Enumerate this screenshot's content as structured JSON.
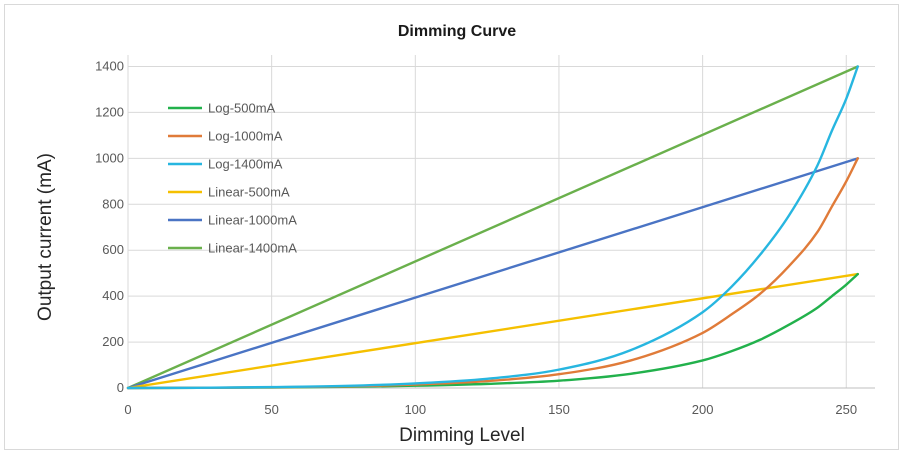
{
  "chart_data": {
    "type": "line",
    "title": "Dimming Curve",
    "xlabel": "Dimming Level",
    "ylabel": "Output current (mA)",
    "xlim": [
      0,
      260
    ],
    "ylim": [
      0,
      1450
    ],
    "xticks": [
      0,
      50,
      100,
      150,
      200,
      250
    ],
    "yticks": [
      0,
      200,
      400,
      600,
      800,
      1000,
      1200,
      1400
    ],
    "grid": true,
    "legend_position": "top-left",
    "series": [
      {
        "name": "Log-500mA",
        "color": "#22b14c",
        "x": [
          0,
          25,
          50,
          75,
          100,
          125,
          150,
          175,
          200,
          210,
          220,
          230,
          240,
          245,
          250,
          254
        ],
        "y": [
          0,
          1,
          2,
          5,
          10,
          18,
          32,
          62,
          120,
          160,
          210,
          275,
          350,
          400,
          450,
          496
        ]
      },
      {
        "name": "Log-1000mA",
        "color": "#e07b39",
        "x": [
          0,
          25,
          50,
          75,
          100,
          125,
          150,
          175,
          200,
          210,
          220,
          230,
          240,
          245,
          250,
          254
        ],
        "y": [
          0,
          1,
          3,
          7,
          15,
          30,
          60,
          120,
          240,
          320,
          410,
          530,
          680,
          790,
          900,
          1000
        ]
      },
      {
        "name": "Log-1400mA",
        "color": "#27b6e0",
        "x": [
          0,
          25,
          50,
          75,
          100,
          125,
          150,
          175,
          200,
          210,
          220,
          230,
          240,
          245,
          250,
          254
        ],
        "y": [
          0,
          1,
          4,
          9,
          20,
          40,
          80,
          165,
          330,
          440,
          580,
          750,
          970,
          1120,
          1260,
          1400
        ]
      },
      {
        "name": "Linear-500mA",
        "color": "#f5c000",
        "x": [
          0,
          254
        ],
        "y": [
          0,
          496
        ]
      },
      {
        "name": "Linear-1000mA",
        "color": "#4a74c4",
        "x": [
          0,
          254
        ],
        "y": [
          0,
          1000
        ]
      },
      {
        "name": "Linear-1400mA",
        "color": "#6ab04c",
        "x": [
          0,
          254
        ],
        "y": [
          0,
          1400
        ]
      }
    ]
  }
}
